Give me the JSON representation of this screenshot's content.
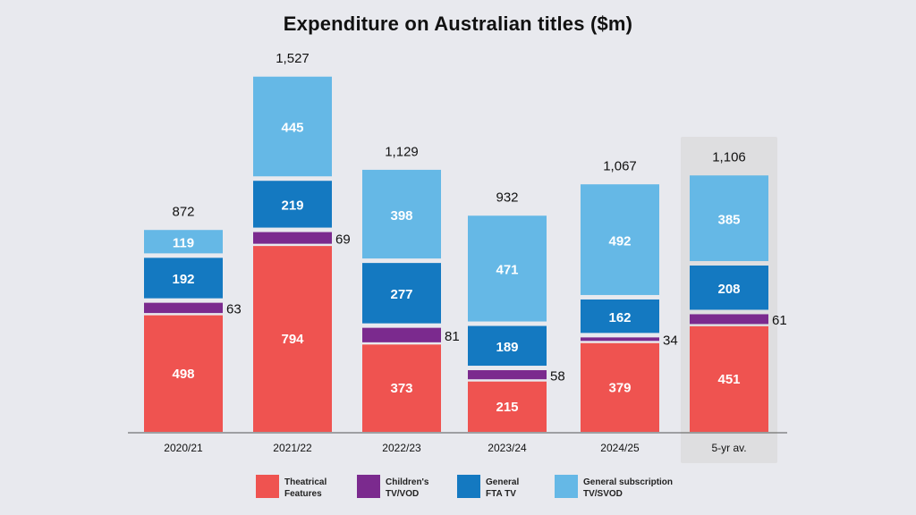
{
  "chart_data": {
    "type": "bar",
    "stacked": true,
    "title": "Expenditure on Australian titles ($m)",
    "categories": [
      "2020/21",
      "2021/22",
      "2022/23",
      "2023/24",
      "2024/25",
      "5-yr av."
    ],
    "highlight_category": "5-yr av.",
    "totals": [
      "872",
      "1,527",
      "1,129",
      "932",
      "1,067",
      "1,106"
    ],
    "series": [
      {
        "name": "Theatrical Features",
        "legend": [
          "Theatrical",
          "Features"
        ],
        "color": "#ef5350",
        "values": [
          498,
          794,
          373,
          215,
          379,
          451
        ],
        "label_position": "inside"
      },
      {
        "name": "Children's TV/VOD",
        "legend": [
          "Children's",
          "TV/VOD"
        ],
        "color": "#7b2a8e",
        "values": [
          63,
          69,
          81,
          58,
          34,
          61
        ],
        "label_position": "outside"
      },
      {
        "name": "General FTA TV",
        "legend": [
          "General",
          "FTA TV"
        ],
        "color": "#1479c1",
        "values": [
          192,
          219,
          277,
          189,
          162,
          208
        ],
        "label_position": "inside"
      },
      {
        "name": "General subscription TV/SVOD",
        "legend": [
          "General subscription",
          "TV/SVOD"
        ],
        "color": "#65b8e6",
        "values": [
          119,
          445,
          398,
          471,
          492,
          385
        ],
        "label_position": "inside"
      }
    ],
    "legend_position": "bottom",
    "grid": false
  }
}
